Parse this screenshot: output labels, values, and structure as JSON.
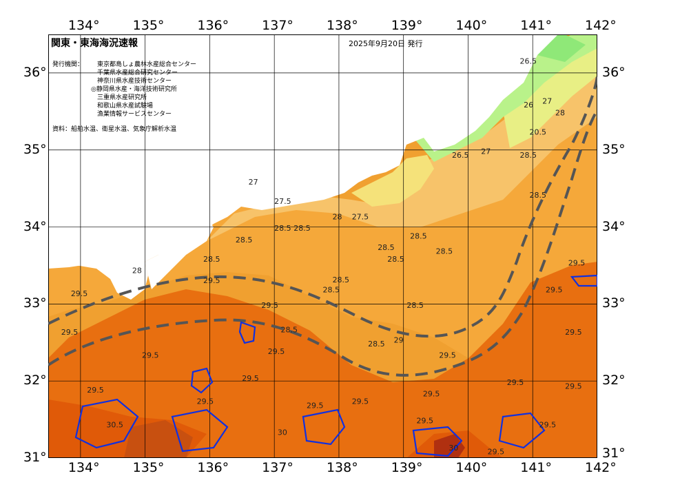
{
  "title": "関東・東海海況速報",
  "issue_date": "2025年9月20日 発行",
  "issuers_label": "発行機関：",
  "issuers": [
    "東京都島しょ農林水産総合センター",
    "千葉県水産総合研究センター",
    "神奈川県水産技術センター",
    "◎静岡県水産・海洋技術研究所",
    "三重県水産研究所",
    "和歌山県水産試験場",
    "漁業情報サービスセンター"
  ],
  "source": "資料：船舶水温、衛星水温、気象庁解析水温",
  "lon_labels": [
    "134°",
    "135°",
    "136°",
    "137°",
    "138°",
    "139°",
    "140°",
    "141°",
    "142°"
  ],
  "lat_labels": [
    "36°",
    "35°",
    "34°",
    "33°",
    "32°",
    "31°"
  ],
  "contour_labels": [
    {
      "t": "26.5",
      "lon": 140.8,
      "lat": 36.12
    },
    {
      "t": "26",
      "lon": 140.86,
      "lat": 35.55
    },
    {
      "t": "27",
      "lon": 141.15,
      "lat": 35.6
    },
    {
      "t": "28",
      "lon": 141.35,
      "lat": 35.45
    },
    {
      "t": "20.5",
      "lon": 140.95,
      "lat": 35.2
    },
    {
      "t": "26.5",
      "lon": 139.75,
      "lat": 34.9
    },
    {
      "t": "27",
      "lon": 140.2,
      "lat": 34.95
    },
    {
      "t": "28.5",
      "lon": 140.8,
      "lat": 34.9
    },
    {
      "t": "28.5",
      "lon": 140.95,
      "lat": 34.38
    },
    {
      "t": "27",
      "lon": 136.6,
      "lat": 34.55
    },
    {
      "t": "27.5",
      "lon": 137.0,
      "lat": 34.3
    },
    {
      "t": "27.5",
      "lon": 138.2,
      "lat": 34.1
    },
    {
      "t": "28",
      "lon": 137.9,
      "lat": 34.1
    },
    {
      "t": "28.5",
      "lon": 137.0,
      "lat": 33.95
    },
    {
      "t": "28.5",
      "lon": 137.3,
      "lat": 33.95
    },
    {
      "t": "28.5",
      "lon": 136.4,
      "lat": 33.8
    },
    {
      "t": "28.5",
      "lon": 138.6,
      "lat": 33.7
    },
    {
      "t": "28.5",
      "lon": 138.75,
      "lat": 33.55
    },
    {
      "t": "28.5",
      "lon": 139.1,
      "lat": 33.85
    },
    {
      "t": "28.5",
      "lon": 139.5,
      "lat": 33.65
    },
    {
      "t": "28.5",
      "lon": 135.9,
      "lat": 33.55
    },
    {
      "t": "28",
      "lon": 134.8,
      "lat": 33.4
    },
    {
      "t": "28.5",
      "lon": 137.9,
      "lat": 33.28
    },
    {
      "t": "28.5",
      "lon": 137.75,
      "lat": 33.15
    },
    {
      "t": "29.5",
      "lon": 133.85,
      "lat": 33.1
    },
    {
      "t": "29.5",
      "lon": 135.9,
      "lat": 33.27
    },
    {
      "t": "29.5",
      "lon": 136.8,
      "lat": 32.95
    },
    {
      "t": "28.5",
      "lon": 137.1,
      "lat": 32.63
    },
    {
      "t": "28.5",
      "lon": 139.05,
      "lat": 32.95
    },
    {
      "t": "28.5",
      "lon": 138.45,
      "lat": 32.45
    },
    {
      "t": "29",
      "lon": 138.85,
      "lat": 32.5
    },
    {
      "t": "29.5",
      "lon": 139.55,
      "lat": 32.3
    },
    {
      "t": "29.5",
      "lon": 136.9,
      "lat": 32.35
    },
    {
      "t": "29.5",
      "lon": 133.7,
      "lat": 32.6
    },
    {
      "t": "29.5",
      "lon": 134.95,
      "lat": 32.3
    },
    {
      "t": "29.5",
      "lon": 136.5,
      "lat": 32.0
    },
    {
      "t": "29.5",
      "lon": 134.1,
      "lat": 31.85
    },
    {
      "t": "29.5",
      "lon": 135.8,
      "lat": 31.7
    },
    {
      "t": "29.5",
      "lon": 137.5,
      "lat": 31.65
    },
    {
      "t": "29.5",
      "lon": 138.2,
      "lat": 31.7
    },
    {
      "t": "29.5",
      "lon": 139.3,
      "lat": 31.8
    },
    {
      "t": "29.5",
      "lon": 139.2,
      "lat": 31.45
    },
    {
      "t": "29.5",
      "lon": 140.6,
      "lat": 31.95
    },
    {
      "t": "29.5",
      "lon": 141.5,
      "lat": 31.9
    },
    {
      "t": "29.5",
      "lon": 141.1,
      "lat": 31.4
    },
    {
      "t": "29.5",
      "lon": 141.2,
      "lat": 33.15
    },
    {
      "t": "29.5",
      "lon": 141.55,
      "lat": 33.5
    },
    {
      "t": "29.5",
      "lon": 141.5,
      "lat": 32.6
    },
    {
      "t": "30",
      "lon": 137.05,
      "lat": 31.3
    },
    {
      "t": "30.5",
      "lon": 134.4,
      "lat": 31.4
    },
    {
      "t": "30",
      "lon": 139.7,
      "lat": 31.1
    },
    {
      "t": "29.5",
      "lon": 140.3,
      "lat": 31.05
    }
  ]
}
